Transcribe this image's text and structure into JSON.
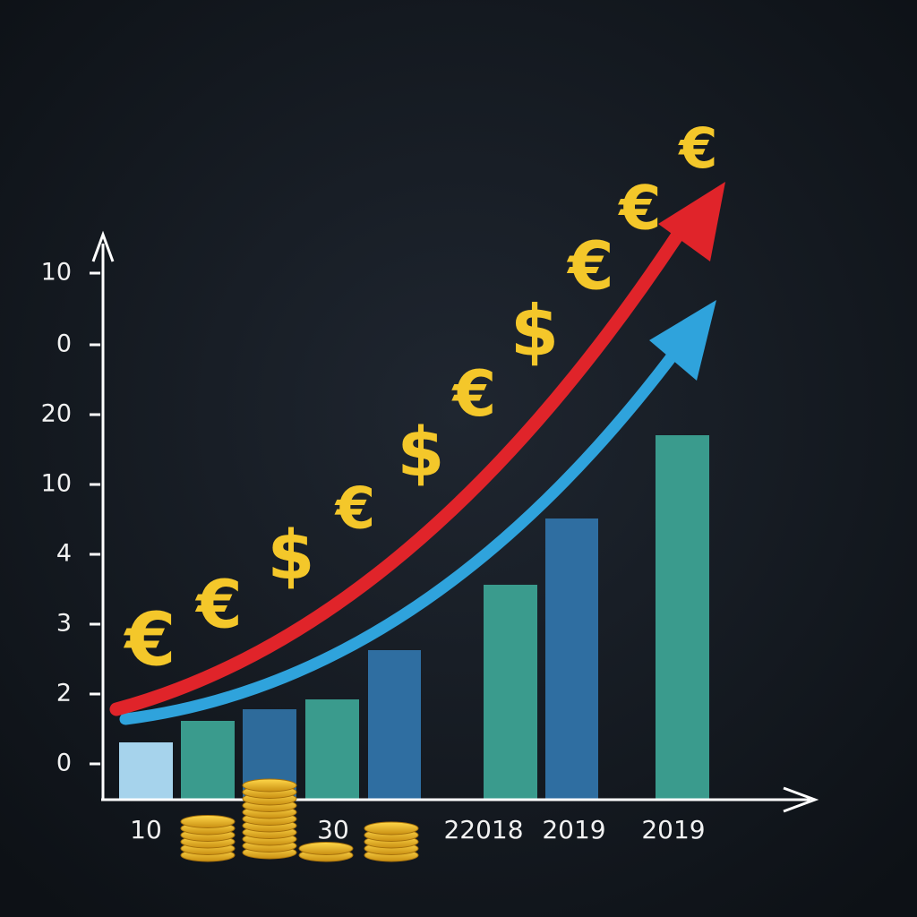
{
  "y_axis_labels": [
    "10",
    "0",
    "20",
    "10",
    "4",
    "3",
    "2",
    "0"
  ],
  "x_axis_labels": [
    "10",
    "30",
    "22018",
    "2019",
    "2019"
  ],
  "currency_symbols": [
    "€",
    "€",
    "$",
    "€",
    "$",
    "€",
    "$",
    "€",
    "€",
    "€"
  ]
}
